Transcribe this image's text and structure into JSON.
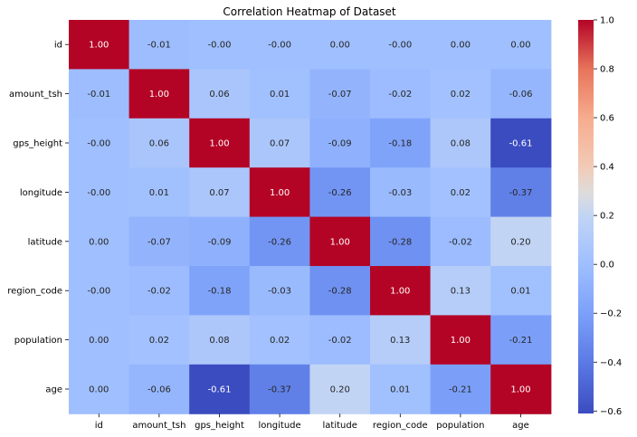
{
  "chart_data": {
    "type": "heatmap",
    "title": "Correlation Heatmap of Dataset",
    "xlabel": "",
    "ylabel": "",
    "x_categories": [
      "id",
      "amount_tsh",
      "gps_height",
      "longitude",
      "latitude",
      "region_code",
      "population",
      "age"
    ],
    "y_categories": [
      "id",
      "amount_tsh",
      "gps_height",
      "longitude",
      "latitude",
      "region_code",
      "population",
      "age"
    ],
    "values": [
      [
        1.0,
        -0.01,
        -0.0,
        -0.0,
        0.0,
        -0.0,
        0.0,
        0.0
      ],
      [
        -0.01,
        1.0,
        0.06,
        0.01,
        -0.07,
        -0.02,
        0.02,
        -0.06
      ],
      [
        -0.0,
        0.06,
        1.0,
        0.07,
        -0.09,
        -0.18,
        0.08,
        -0.61
      ],
      [
        -0.0,
        0.01,
        0.07,
        1.0,
        -0.26,
        -0.03,
        0.02,
        -0.37
      ],
      [
        0.0,
        -0.07,
        -0.09,
        -0.26,
        1.0,
        -0.28,
        -0.02,
        0.2
      ],
      [
        -0.0,
        -0.02,
        -0.18,
        -0.03,
        -0.28,
        1.0,
        0.13,
        0.01
      ],
      [
        0.0,
        0.02,
        0.08,
        0.02,
        -0.02,
        0.13,
        1.0,
        -0.21
      ],
      [
        0.0,
        -0.06,
        -0.61,
        -0.37,
        0.2,
        0.01,
        -0.21,
        1.0
      ]
    ],
    "annotations": [
      [
        "1.00",
        "-0.01",
        "-0.00",
        "-0.00",
        "0.00",
        "-0.00",
        "0.00",
        "0.00"
      ],
      [
        "-0.01",
        "1.00",
        "0.06",
        "0.01",
        "-0.07",
        "-0.02",
        "0.02",
        "-0.06"
      ],
      [
        "-0.00",
        "0.06",
        "1.00",
        "0.07",
        "-0.09",
        "-0.18",
        "0.08",
        "-0.61"
      ],
      [
        "-0.00",
        "0.01",
        "0.07",
        "1.00",
        "-0.26",
        "-0.03",
        "0.02",
        "-0.37"
      ],
      [
        "0.00",
        "-0.07",
        "-0.09",
        "-0.26",
        "1.00",
        "-0.28",
        "-0.02",
        "0.20"
      ],
      [
        "-0.00",
        "-0.02",
        "-0.18",
        "-0.03",
        "-0.28",
        "1.00",
        "0.13",
        "0.01"
      ],
      [
        "0.00",
        "0.02",
        "0.08",
        "0.02",
        "-0.02",
        "0.13",
        "1.00",
        "-0.21"
      ],
      [
        "0.00",
        "-0.06",
        "-0.61",
        "-0.37",
        "0.20",
        "0.01",
        "-0.21",
        "1.00"
      ]
    ],
    "colormap": "coolwarm",
    "vmin": -0.61,
    "vmax": 1.0,
    "colorbar": {
      "ticks": [
        -0.6,
        -0.4,
        -0.2,
        0.0,
        0.2,
        0.4,
        0.6,
        0.8,
        1.0
      ],
      "tick_labels": [
        "−0.6",
        "−0.4",
        "−0.2",
        "0.0",
        "0.2",
        "0.4",
        "0.6",
        "0.8",
        "1.0"
      ],
      "placement": "right"
    },
    "grid": false
  }
}
